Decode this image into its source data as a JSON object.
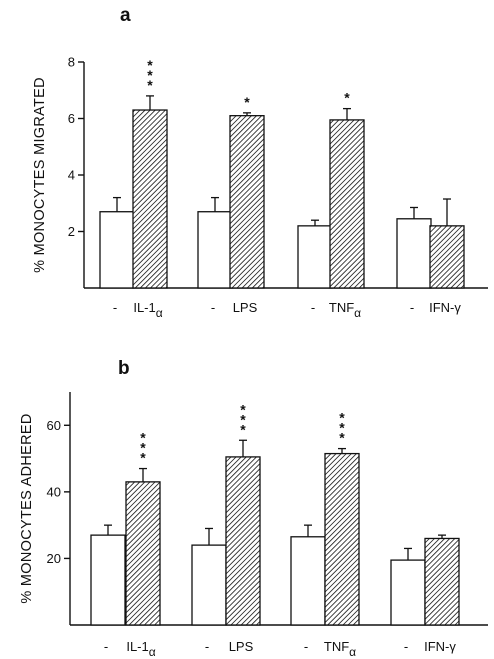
{
  "chart_data": [
    {
      "panel_label": "a",
      "type": "bar",
      "ylabel": "% MONOCYTES MIGRATED",
      "ylim": [
        0,
        8
      ],
      "yticks": [
        2,
        4,
        6,
        8
      ],
      "categories": [
        "IL-1α",
        "LPS",
        "TNFα",
        "IFN-γ"
      ],
      "category_parts": [
        {
          "base": "IL-1",
          "sub": "α"
        },
        {
          "base": "LPS",
          "sub": ""
        },
        {
          "base": "TNF",
          "sub": "α"
        },
        {
          "base": "IFN-γ",
          "sub": ""
        }
      ],
      "control_label": "-",
      "series": [
        {
          "fill": "open",
          "values": [
            2.7,
            2.7,
            2.2,
            2.45
          ],
          "errors": [
            0.5,
            0.5,
            0.2,
            0.4
          ]
        },
        {
          "fill": "hatched",
          "values": [
            6.3,
            6.1,
            5.95,
            2.2
          ],
          "errors": [
            0.5,
            0.1,
            0.4,
            0.95
          ]
        }
      ],
      "significance": [
        "***",
        "*",
        "*",
        ""
      ]
    },
    {
      "panel_label": "b",
      "type": "bar",
      "ylabel": "% MONOCYTES ADHERED",
      "ylim": [
        0,
        70
      ],
      "yticks": [
        20,
        40,
        60
      ],
      "categories": [
        "IL-1α",
        "LPS",
        "TNFα",
        "IFN-γ"
      ],
      "category_parts": [
        {
          "base": "IL-1",
          "sub": "α"
        },
        {
          "base": "LPS",
          "sub": ""
        },
        {
          "base": "TNF",
          "sub": "α"
        },
        {
          "base": "IFN-γ",
          "sub": ""
        }
      ],
      "control_label": "-",
      "series": [
        {
          "fill": "open",
          "values": [
            27,
            24,
            26.5,
            19.5
          ],
          "errors": [
            3,
            5,
            3.5,
            3.5
          ]
        },
        {
          "fill": "hatched",
          "values": [
            43,
            50.5,
            51.5,
            26
          ],
          "errors": [
            4,
            5,
            1.5,
            1
          ]
        }
      ],
      "significance": [
        "***",
        "***",
        "***",
        ""
      ]
    }
  ]
}
